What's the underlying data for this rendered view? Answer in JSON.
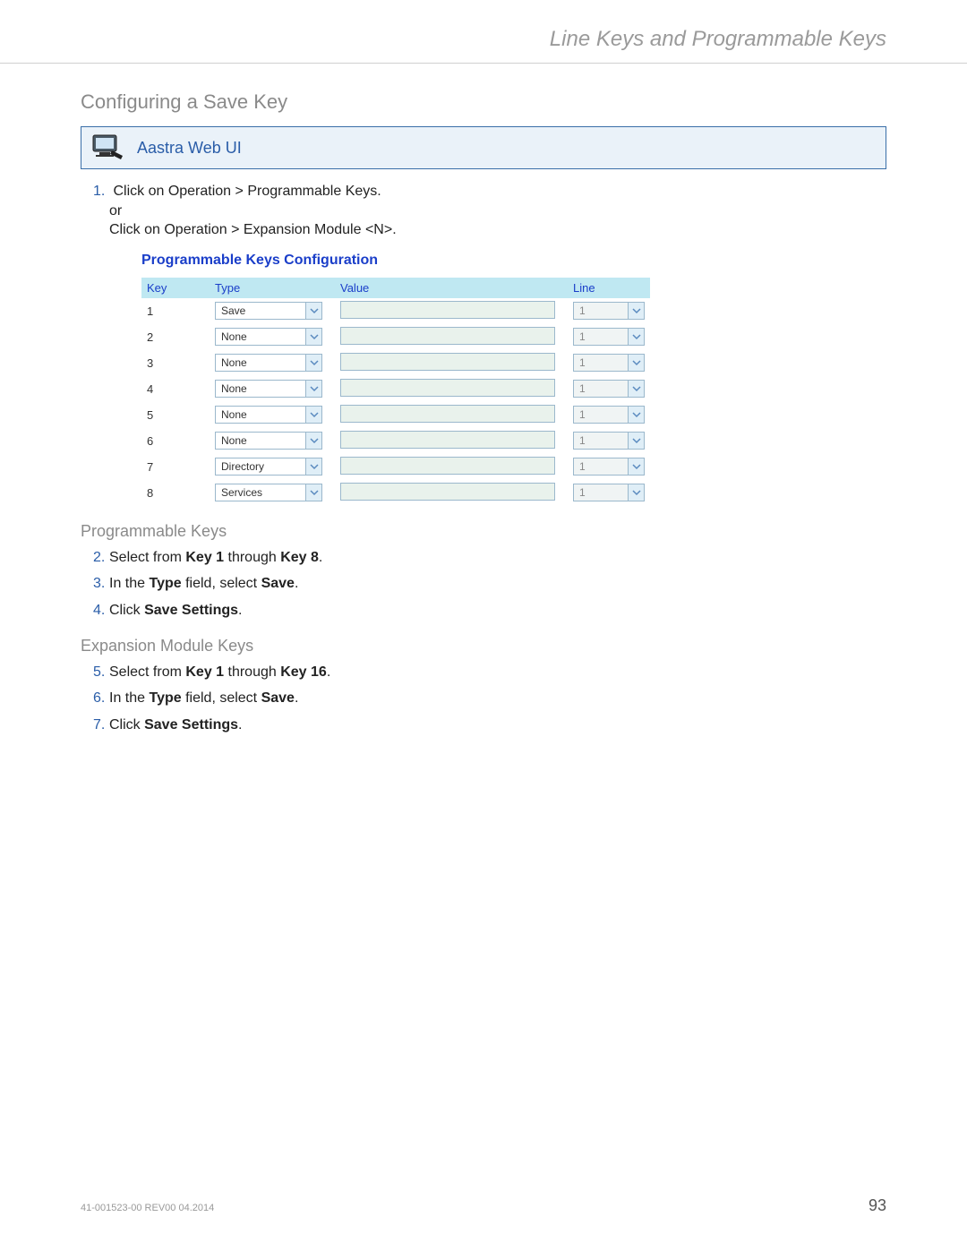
{
  "header": {
    "title": "Line Keys and Programmable Keys"
  },
  "section": {
    "title": "Configuring a Save Key"
  },
  "webui": {
    "label": "Aastra Web UI"
  },
  "step1": {
    "num": "1.",
    "a": "Click on",
    "b": "Operation > Programmable Keys.",
    "or": "or",
    "c": "Click on",
    "d": "Operation > Expansion Module <N>."
  },
  "config": {
    "title": "Programmable Keys Configuration",
    "headers": {
      "key": "Key",
      "type": "Type",
      "value": "Value",
      "line": "Line"
    },
    "rows": [
      {
        "key": "1",
        "type": "Save",
        "line": "1"
      },
      {
        "key": "2",
        "type": "None",
        "line": "1"
      },
      {
        "key": "3",
        "type": "None",
        "line": "1"
      },
      {
        "key": "4",
        "type": "None",
        "line": "1"
      },
      {
        "key": "5",
        "type": "None",
        "line": "1"
      },
      {
        "key": "6",
        "type": "None",
        "line": "1"
      },
      {
        "key": "7",
        "type": "Directory",
        "line": "1"
      },
      {
        "key": "8",
        "type": "Services",
        "line": "1"
      }
    ]
  },
  "subheading1": "Programmable Keys",
  "step2": {
    "num": "2.",
    "a": "Select from ",
    "b": "Key 1",
    "c": " through ",
    "d": "Key 8",
    "e": "."
  },
  "step3": {
    "num": "3.",
    "a": "In the ",
    "b": "Type",
    "c": " field, select ",
    "d": "Save",
    "e": "."
  },
  "step4": {
    "num": "4.",
    "a": "Click ",
    "b": "Save Settings",
    "c": "."
  },
  "subheading2": "Expansion Module Keys",
  "step5": {
    "num": "5.",
    "a": "Select from ",
    "b": "Key 1",
    "c": " through ",
    "d": "Key 16",
    "e": "."
  },
  "step6": {
    "num": "6.",
    "a": "In the ",
    "b": "Type",
    "c": " field, select ",
    "d": "Save",
    "e": "."
  },
  "step7": {
    "num": "7.",
    "a": "Click ",
    "b": "Save Settings",
    "c": "."
  },
  "footer": {
    "doc": "41-001523-00 REV00   04.2014",
    "page": "93"
  },
  "colors": {
    "header_text": "#9a9a9a",
    "link_blue": "#2a5da8",
    "config_blue": "#1a3ec9",
    "th_bg": "#bfe8f2",
    "input_bg": "#e9f2ec"
  }
}
